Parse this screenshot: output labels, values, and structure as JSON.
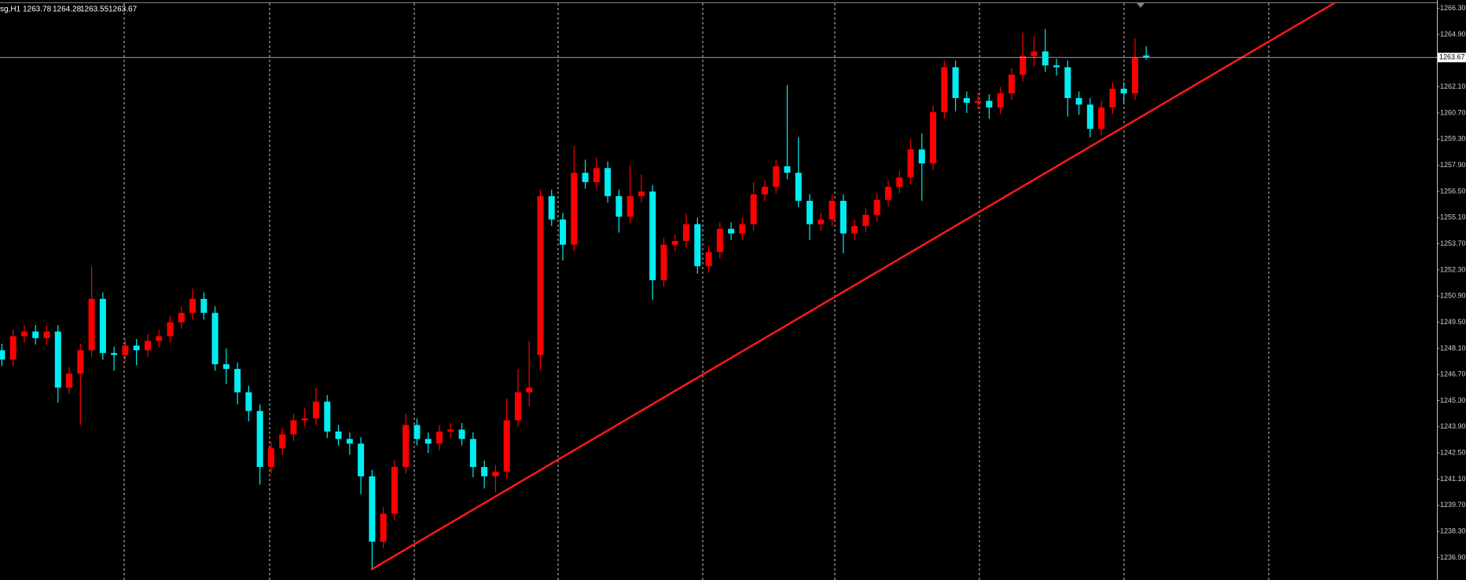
{
  "chart_data": {
    "type": "candlestick",
    "symbol": "sg,H1",
    "up_color": "#ff0000",
    "down_color": "#00eef2",
    "ylim": [
      1235.7,
      1266.75
    ],
    "yticks": [
      {
        "value": 1236.9,
        "label": "1236.90"
      },
      {
        "value": 1238.3,
        "label": "1238.30"
      },
      {
        "value": 1239.7,
        "label": "1239.70"
      },
      {
        "value": 1241.1,
        "label": "1241.10"
      },
      {
        "value": 1242.5,
        "label": "1242.50"
      },
      {
        "value": 1243.9,
        "label": "1243.90"
      },
      {
        "value": 1245.3,
        "label": "1245.30"
      },
      {
        "value": 1246.7,
        "label": "1246.70"
      },
      {
        "value": 1248.1,
        "label": "1248.10"
      },
      {
        "value": 1249.5,
        "label": "1249.50"
      },
      {
        "value": 1250.9,
        "label": "1250.90"
      },
      {
        "value": 1252.3,
        "label": "1252.30"
      },
      {
        "value": 1253.7,
        "label": "1253.70"
      },
      {
        "value": 1255.1,
        "label": "1255.10"
      },
      {
        "value": 1256.5,
        "label": "1256.50"
      },
      {
        "value": 1257.9,
        "label": "1257.90"
      },
      {
        "value": 1259.3,
        "label": "1259.30"
      },
      {
        "value": 1260.7,
        "label": "1260.70"
      },
      {
        "value": 1262.1,
        "label": "1262.10"
      },
      {
        "value": 1264.9,
        "label": "1264.90"
      },
      {
        "value": 1266.3,
        "label": "1266.30"
      }
    ],
    "ohlc": [
      [
        1248.0,
        1248.35,
        1247.15,
        1247.5
      ],
      [
        1247.5,
        1249.1,
        1247.15,
        1248.75
      ],
      [
        1248.75,
        1249.35,
        1248.4,
        1249.0
      ],
      [
        1249.0,
        1249.35,
        1248.3,
        1248.65
      ],
      [
        1248.65,
        1249.35,
        1248.3,
        1249.0
      ],
      [
        1249.0,
        1249.35,
        1245.2,
        1246.0
      ],
      [
        1246.0,
        1247.1,
        1245.65,
        1246.75
      ],
      [
        1246.75,
        1248.35,
        1244.0,
        1248.0
      ],
      [
        1248.0,
        1252.5,
        1247.65,
        1250.75
      ],
      [
        1250.75,
        1251.1,
        1247.5,
        1247.85
      ],
      [
        1247.85,
        1248.2,
        1246.9,
        1247.75
      ],
      [
        1247.75,
        1248.6,
        1247.4,
        1248.25
      ],
      [
        1248.25,
        1248.6,
        1247.2,
        1248.0
      ],
      [
        1248.0,
        1248.85,
        1247.65,
        1248.5
      ],
      [
        1248.5,
        1249.1,
        1248.15,
        1248.75
      ],
      [
        1248.75,
        1249.85,
        1248.4,
        1249.5
      ],
      [
        1249.5,
        1250.35,
        1249.15,
        1250.0
      ],
      [
        1250.0,
        1251.3,
        1249.65,
        1250.75
      ],
      [
        1250.75,
        1251.1,
        1249.65,
        1250.0
      ],
      [
        1250.0,
        1250.35,
        1246.9,
        1247.25
      ],
      [
        1247.25,
        1248.1,
        1246.2,
        1247.0
      ],
      [
        1247.0,
        1247.35,
        1245.1,
        1245.75
      ],
      [
        1245.75,
        1246.1,
        1244.2,
        1244.75
      ],
      [
        1244.75,
        1245.1,
        1240.8,
        1241.75
      ],
      [
        1241.75,
        1243.1,
        1241.4,
        1242.75
      ],
      [
        1242.75,
        1243.85,
        1242.4,
        1243.5
      ],
      [
        1243.5,
        1244.6,
        1243.15,
        1244.25
      ],
      [
        1244.25,
        1244.9,
        1243.9,
        1244.35
      ],
      [
        1244.35,
        1246.0,
        1244.0,
        1245.25
      ],
      [
        1245.25,
        1245.6,
        1243.3,
        1243.65
      ],
      [
        1243.65,
        1244.0,
        1242.9,
        1243.25
      ],
      [
        1243.25,
        1243.6,
        1242.4,
        1243.0
      ],
      [
        1243.0,
        1243.35,
        1240.3,
        1241.25
      ],
      [
        1241.25,
        1241.6,
        1236.25,
        1237.75
      ],
      [
        1237.75,
        1239.6,
        1237.4,
        1239.25
      ],
      [
        1239.25,
        1242.1,
        1238.9,
        1241.75
      ],
      [
        1241.75,
        1244.6,
        1241.4,
        1244.0
      ],
      [
        1244.0,
        1244.35,
        1242.9,
        1243.25
      ],
      [
        1243.25,
        1243.6,
        1242.5,
        1243.0
      ],
      [
        1243.0,
        1244.0,
        1242.65,
        1243.65
      ],
      [
        1243.65,
        1244.1,
        1243.3,
        1243.75
      ],
      [
        1243.75,
        1244.1,
        1242.9,
        1243.25
      ],
      [
        1243.25,
        1243.6,
        1241.2,
        1241.75
      ],
      [
        1241.75,
        1242.1,
        1240.6,
        1241.25
      ],
      [
        1241.25,
        1241.85,
        1240.4,
        1241.5
      ],
      [
        1241.5,
        1245.4,
        1241.15,
        1244.25
      ],
      [
        1244.25,
        1247.0,
        1243.9,
        1245.75
      ],
      [
        1245.75,
        1248.5,
        1245.0,
        1246.0
      ],
      [
        1247.75,
        1256.6,
        1246.9,
        1256.25
      ],
      [
        1256.25,
        1256.6,
        1254.65,
        1255.0
      ],
      [
        1255.0,
        1255.35,
        1252.8,
        1253.65
      ],
      [
        1253.65,
        1258.95,
        1253.3,
        1257.5
      ],
      [
        1257.5,
        1258.2,
        1256.65,
        1257.0
      ],
      [
        1257.0,
        1258.3,
        1256.65,
        1257.75
      ],
      [
        1257.75,
        1258.1,
        1255.9,
        1256.25
      ],
      [
        1256.25,
        1256.6,
        1254.3,
        1255.15
      ],
      [
        1255.15,
        1257.9,
        1254.8,
        1256.25
      ],
      [
        1256.25,
        1257.4,
        1255.9,
        1256.5
      ],
      [
        1256.5,
        1256.85,
        1250.7,
        1251.75
      ],
      [
        1251.75,
        1254.0,
        1251.4,
        1253.65
      ],
      [
        1253.65,
        1254.2,
        1253.3,
        1253.85
      ],
      [
        1253.85,
        1255.3,
        1253.5,
        1254.75
      ],
      [
        1254.75,
        1255.1,
        1252.1,
        1252.5
      ],
      [
        1252.5,
        1253.6,
        1252.15,
        1253.25
      ],
      [
        1253.25,
        1254.85,
        1252.9,
        1254.5
      ],
      [
        1254.5,
        1254.85,
        1253.9,
        1254.25
      ],
      [
        1254.25,
        1255.1,
        1253.9,
        1254.75
      ],
      [
        1254.75,
        1257.0,
        1254.4,
        1256.35
      ],
      [
        1256.35,
        1257.1,
        1256.0,
        1256.75
      ],
      [
        1256.75,
        1258.2,
        1256.4,
        1257.85
      ],
      [
        1257.85,
        1262.2,
        1257.15,
        1257.5
      ],
      [
        1257.5,
        1259.4,
        1255.65,
        1256.0
      ],
      [
        1256.0,
        1256.35,
        1253.9,
        1254.75
      ],
      [
        1254.75,
        1255.35,
        1254.4,
        1255.0
      ],
      [
        1255.0,
        1256.35,
        1254.65,
        1256.0
      ],
      [
        1256.0,
        1256.35,
        1253.2,
        1254.25
      ],
      [
        1254.25,
        1255.0,
        1253.9,
        1254.65
      ],
      [
        1254.65,
        1255.6,
        1254.3,
        1255.25
      ],
      [
        1255.25,
        1256.4,
        1254.9,
        1256.05
      ],
      [
        1256.05,
        1257.1,
        1255.7,
        1256.75
      ],
      [
        1256.75,
        1257.6,
        1256.4,
        1257.25
      ],
      [
        1257.25,
        1259.3,
        1256.9,
        1258.75
      ],
      [
        1258.75,
        1259.6,
        1256.0,
        1258.0
      ],
      [
        1258.0,
        1261.1,
        1257.65,
        1260.75
      ],
      [
        1260.75,
        1263.5,
        1260.4,
        1263.15
      ],
      [
        1263.15,
        1263.5,
        1260.8,
        1261.5
      ],
      [
        1261.5,
        1261.85,
        1260.7,
        1261.25
      ],
      [
        1261.25,
        1261.8,
        1260.9,
        1261.35
      ],
      [
        1261.35,
        1261.7,
        1260.4,
        1261.0
      ],
      [
        1261.0,
        1262.1,
        1260.65,
        1261.75
      ],
      [
        1261.75,
        1263.1,
        1261.4,
        1262.75
      ],
      [
        1262.75,
        1265.0,
        1262.4,
        1263.75
      ],
      [
        1263.75,
        1264.8,
        1263.2,
        1264.0
      ],
      [
        1264.0,
        1265.2,
        1262.9,
        1263.25
      ],
      [
        1263.25,
        1263.6,
        1262.7,
        1263.15
      ],
      [
        1263.15,
        1263.5,
        1260.5,
        1261.5
      ],
      [
        1261.5,
        1261.85,
        1260.6,
        1261.15
      ],
      [
        1261.15,
        1261.5,
        1259.4,
        1259.85
      ],
      [
        1259.85,
        1261.35,
        1259.5,
        1261.0
      ],
      [
        1261.0,
        1262.35,
        1260.65,
        1262.0
      ],
      [
        1262.0,
        1262.35,
        1261.2,
        1261.75
      ],
      [
        1261.75,
        1264.7,
        1261.4,
        1263.65
      ],
      [
        1263.78,
        1264.28,
        1263.55,
        1263.67
      ]
    ],
    "trendline": {
      "x": [
        32.9,
        118.8
      ],
      "y": [
        1236.25,
        1266.6
      ],
      "color": "#ff1a1a"
    }
  }
}
